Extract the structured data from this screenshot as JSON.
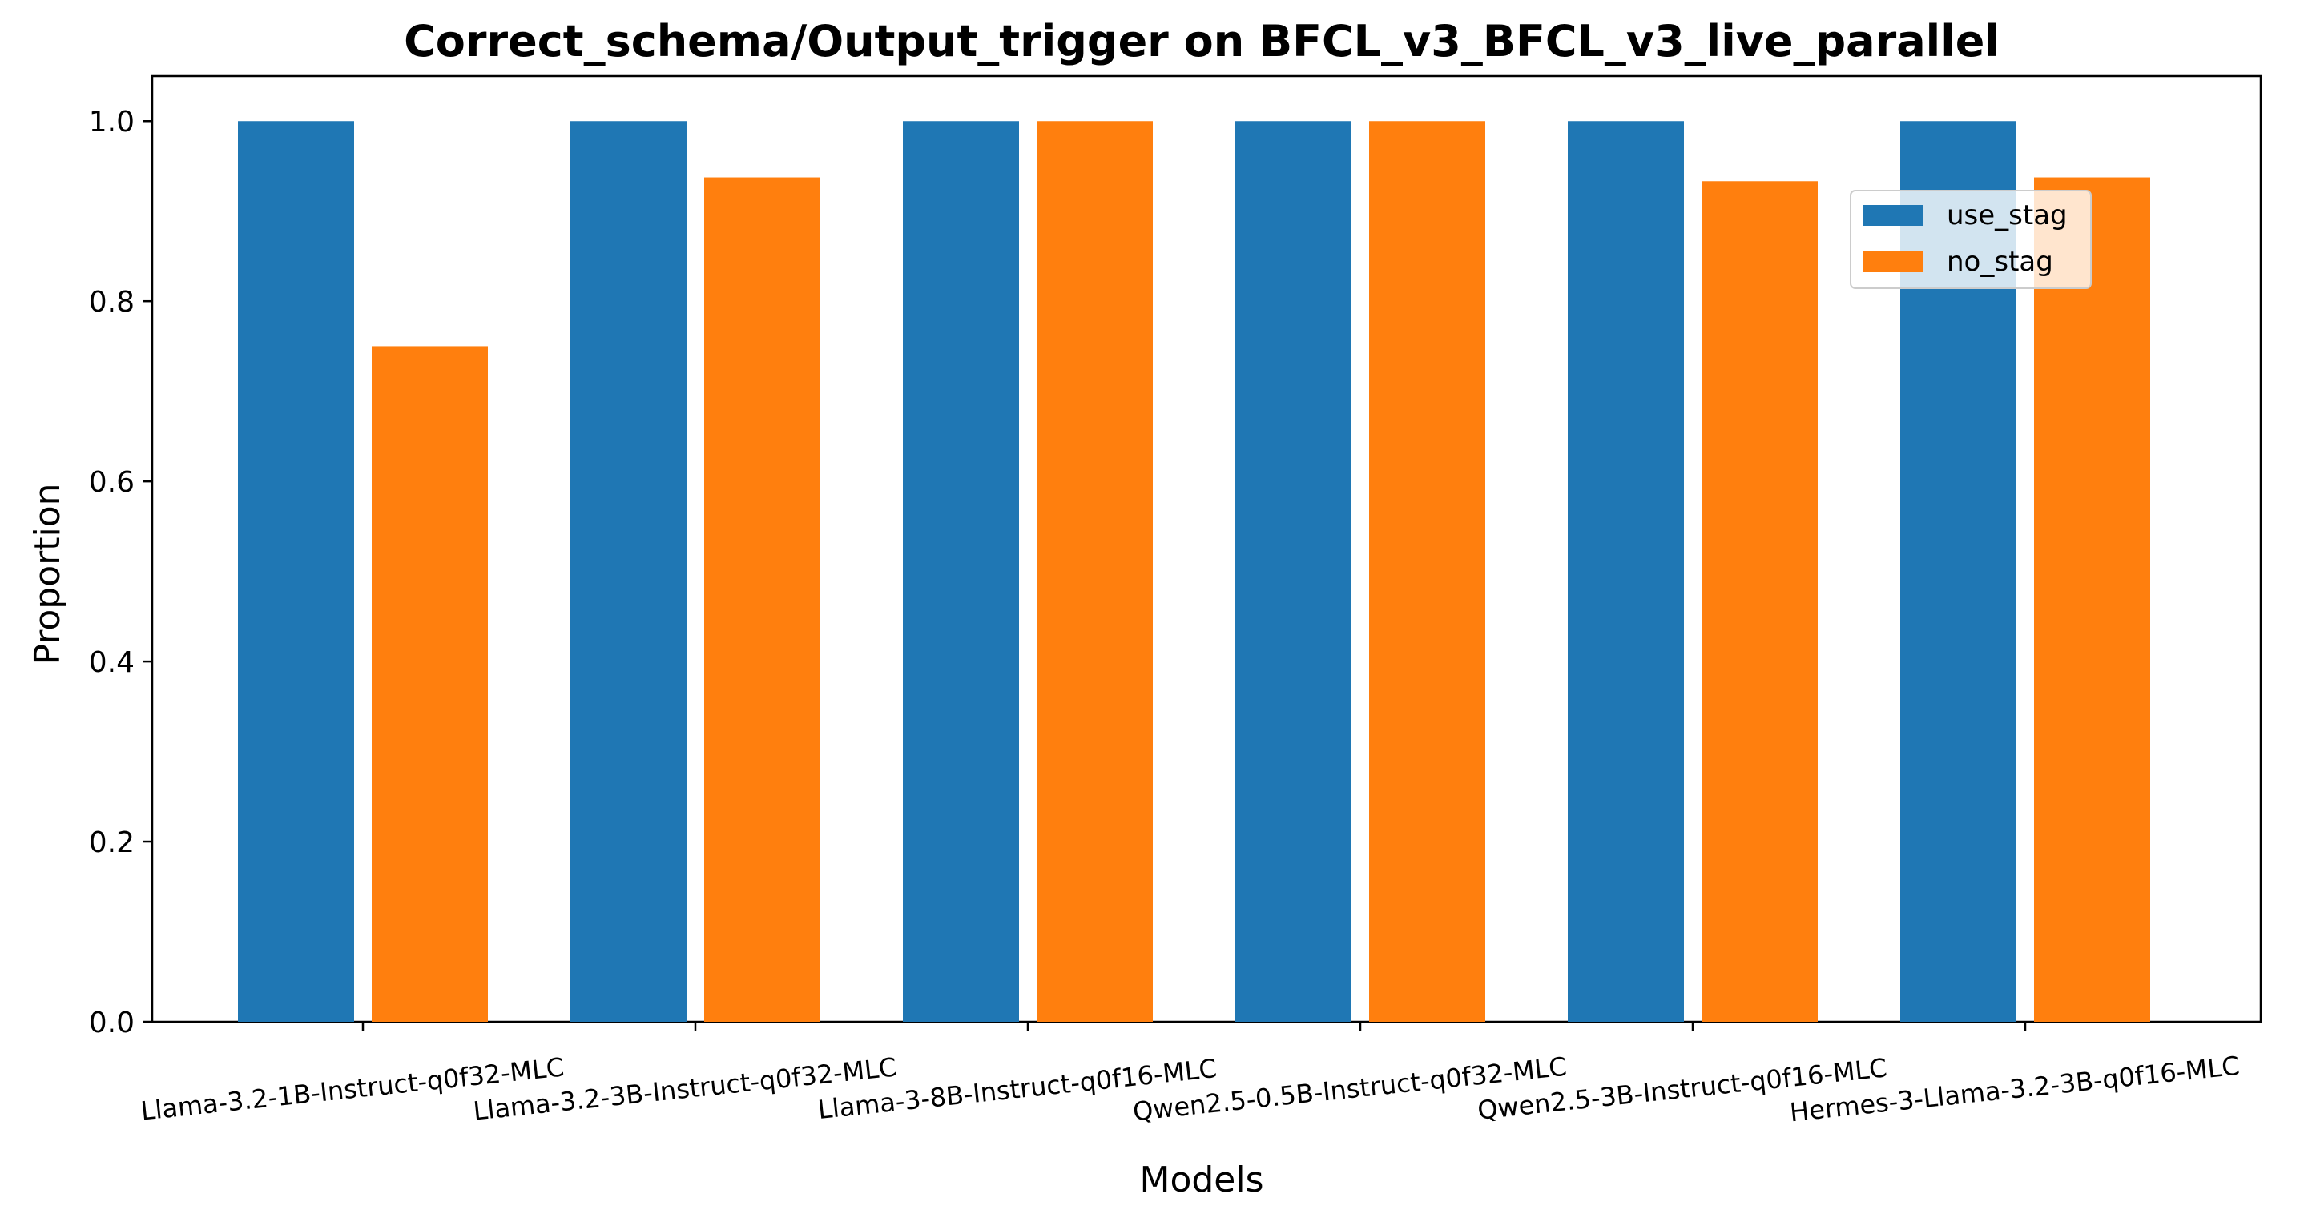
{
  "chart_data": {
    "type": "bar",
    "title": "Correct_schema/Output_trigger on BFCL_v3_BFCL_v3_live_parallel",
    "xlabel": "Models",
    "ylabel": "Proportion",
    "ylim": [
      0,
      1.05
    ],
    "yticks": [
      "0.0",
      "0.2",
      "0.4",
      "0.6",
      "0.8",
      "1.0"
    ],
    "grid": false,
    "legend_position": "upper-right",
    "categories": [
      "Llama-3.2-1B-Instruct-q0f32-MLC",
      "Llama-3.2-3B-Instruct-q0f32-MLC",
      "Llama-3-8B-Instruct-q0f16-MLC",
      "Qwen2.5-0.5B-Instruct-q0f32-MLC",
      "Qwen2.5-3B-Instruct-q0f16-MLC",
      "Hermes-3-Llama-3.2-3B-q0f16-MLC"
    ],
    "series": [
      {
        "name": "use_stag",
        "color": "#1f77b4",
        "values": [
          1.0,
          1.0,
          1.0,
          1.0,
          1.0,
          1.0
        ]
      },
      {
        "name": "no_stag",
        "color": "#ff7f0e",
        "values": [
          0.75,
          0.9375,
          1.0,
          1.0,
          0.9333,
          0.9375
        ]
      }
    ]
  }
}
